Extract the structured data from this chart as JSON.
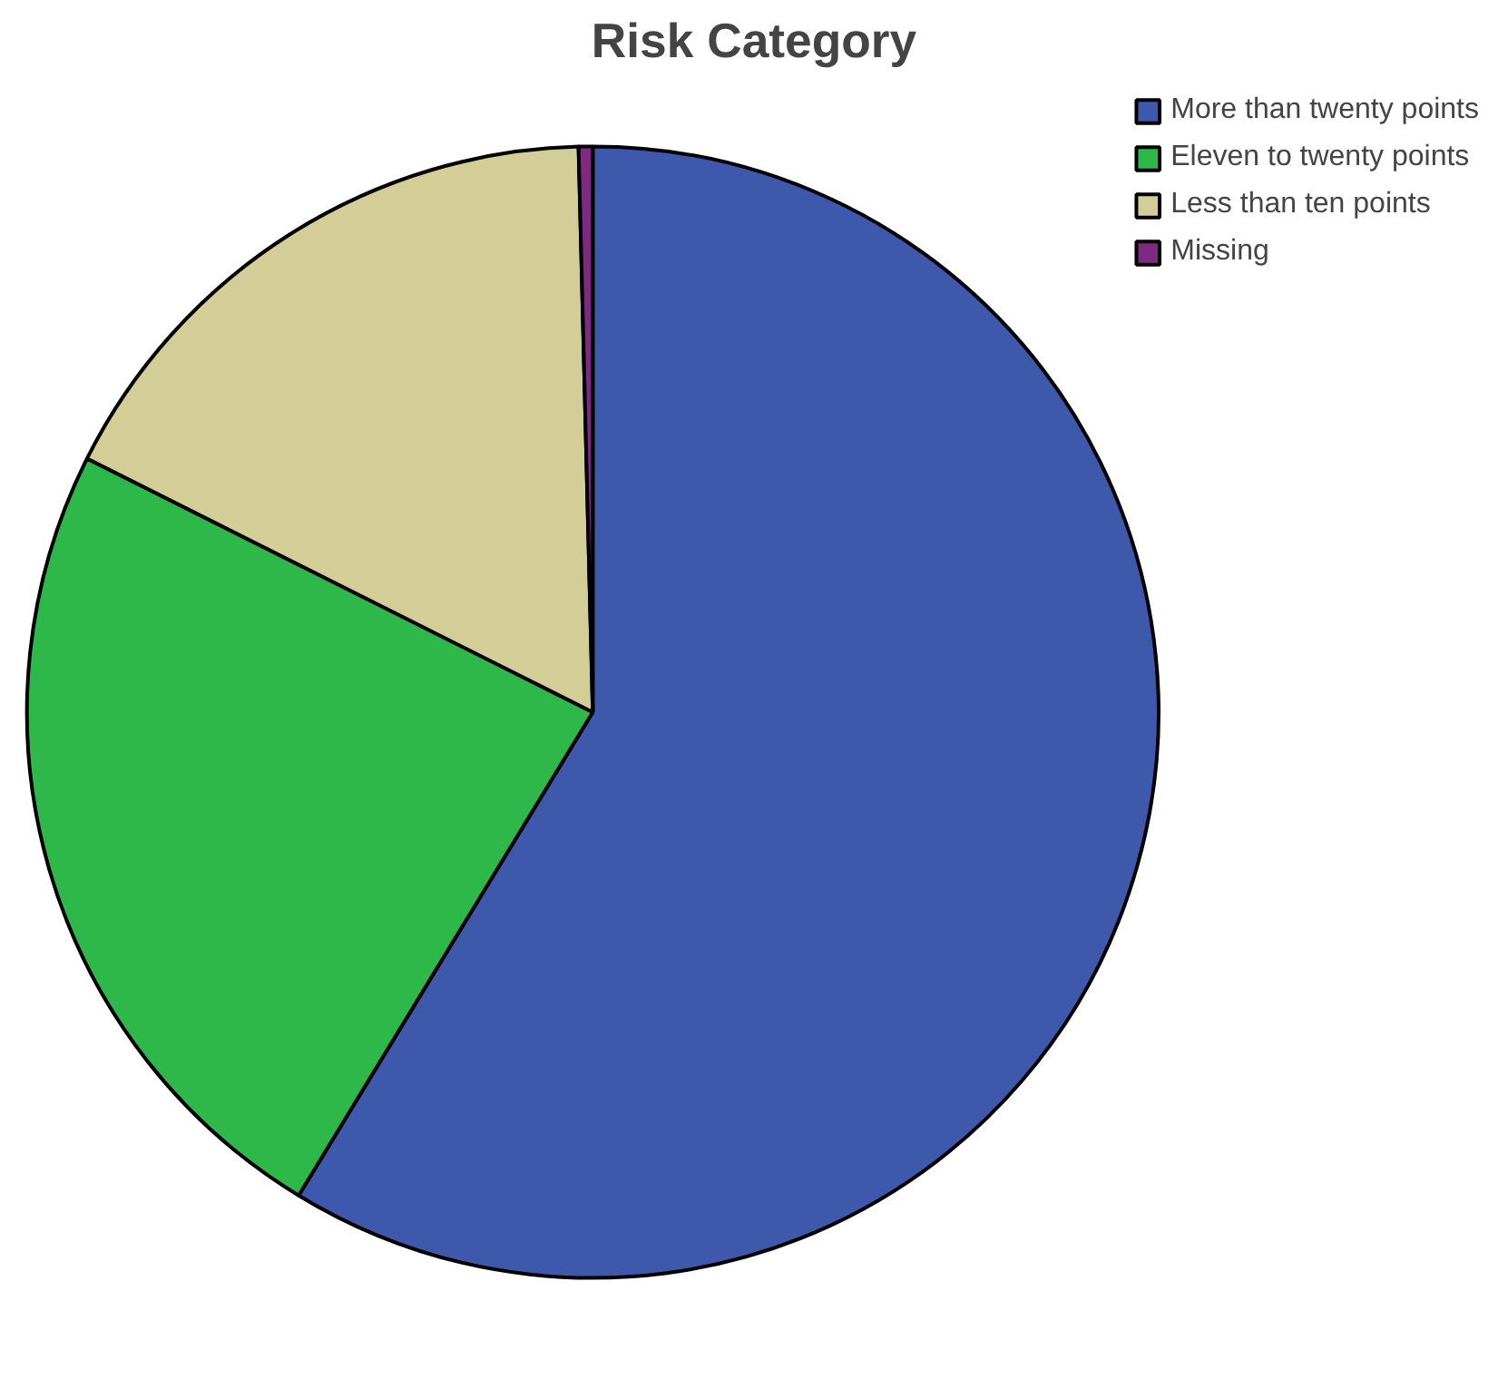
{
  "chart_data": {
    "type": "pie",
    "title": "Risk Category",
    "categories": [
      "More than twenty points",
      "Eleven to twenty points",
      "Less than ten points",
      "Missing"
    ],
    "values": [
      58.7,
      23.7,
      17.2,
      0.4
    ],
    "colors": [
      "#3e58ac",
      "#2fb84a",
      "#d3ce97",
      "#7e2a80"
    ],
    "legend": "top right"
  }
}
